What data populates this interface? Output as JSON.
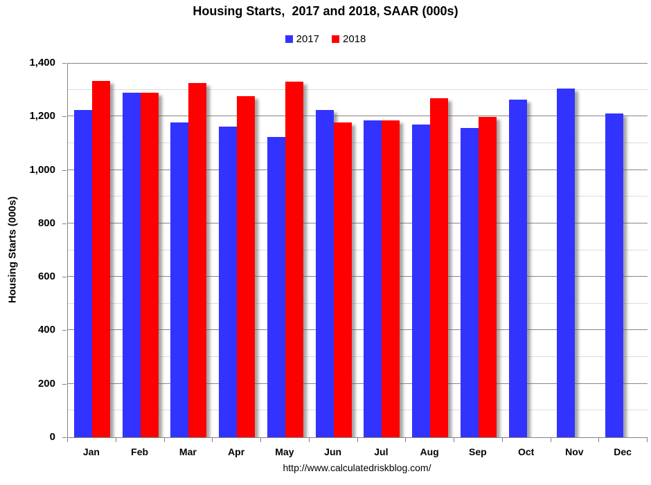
{
  "title": "Housing Starts,  2017 and 2018, SAAR (000s)",
  "footer": "http://www.calculatedriskblog.com/",
  "legend": [
    {
      "label": "2017",
      "color": "#3333FF"
    },
    {
      "label": "2018",
      "color": "#FF0000"
    }
  ],
  "colors": {
    "bar_2017": "#3333FF",
    "bar_2018": "#FF0000",
    "major_gridline": "#858585",
    "minor_gridline": "#dcdcdc",
    "axis": "#808080",
    "text": "#000000"
  },
  "chart_data": {
    "type": "bar",
    "title": "Housing Starts,  2017 and 2018, SAAR (000s)",
    "categories": [
      "Jan",
      "Feb",
      "Mar",
      "Apr",
      "May",
      "Jun",
      "Jul",
      "Aug",
      "Sep",
      "Oct",
      "Nov",
      "Dec"
    ],
    "series": [
      {
        "name": "2017",
        "color": "#3333FF",
        "values": [
          1225,
          1290,
          1178,
          1162,
          1122,
          1224,
          1184,
          1171,
          1157,
          1263,
          1303,
          1210
        ]
      },
      {
        "name": "2018",
        "color": "#FF0000",
        "values": [
          1334,
          1289,
          1326,
          1276,
          1329,
          1177,
          1184,
          1267,
          1199,
          null,
          null,
          null
        ]
      }
    ],
    "xlabel": "",
    "ylabel": "Housing Starts (000s)",
    "ylim": [
      0,
      1400
    ],
    "ytick_interval": 200,
    "minor_gridline_interval": 100,
    "ytick_labels": [
      "0",
      "200",
      "400",
      "600",
      "800",
      "1,000",
      "1,200",
      "1,400"
    ],
    "grid": true,
    "legend_position": "top center"
  }
}
